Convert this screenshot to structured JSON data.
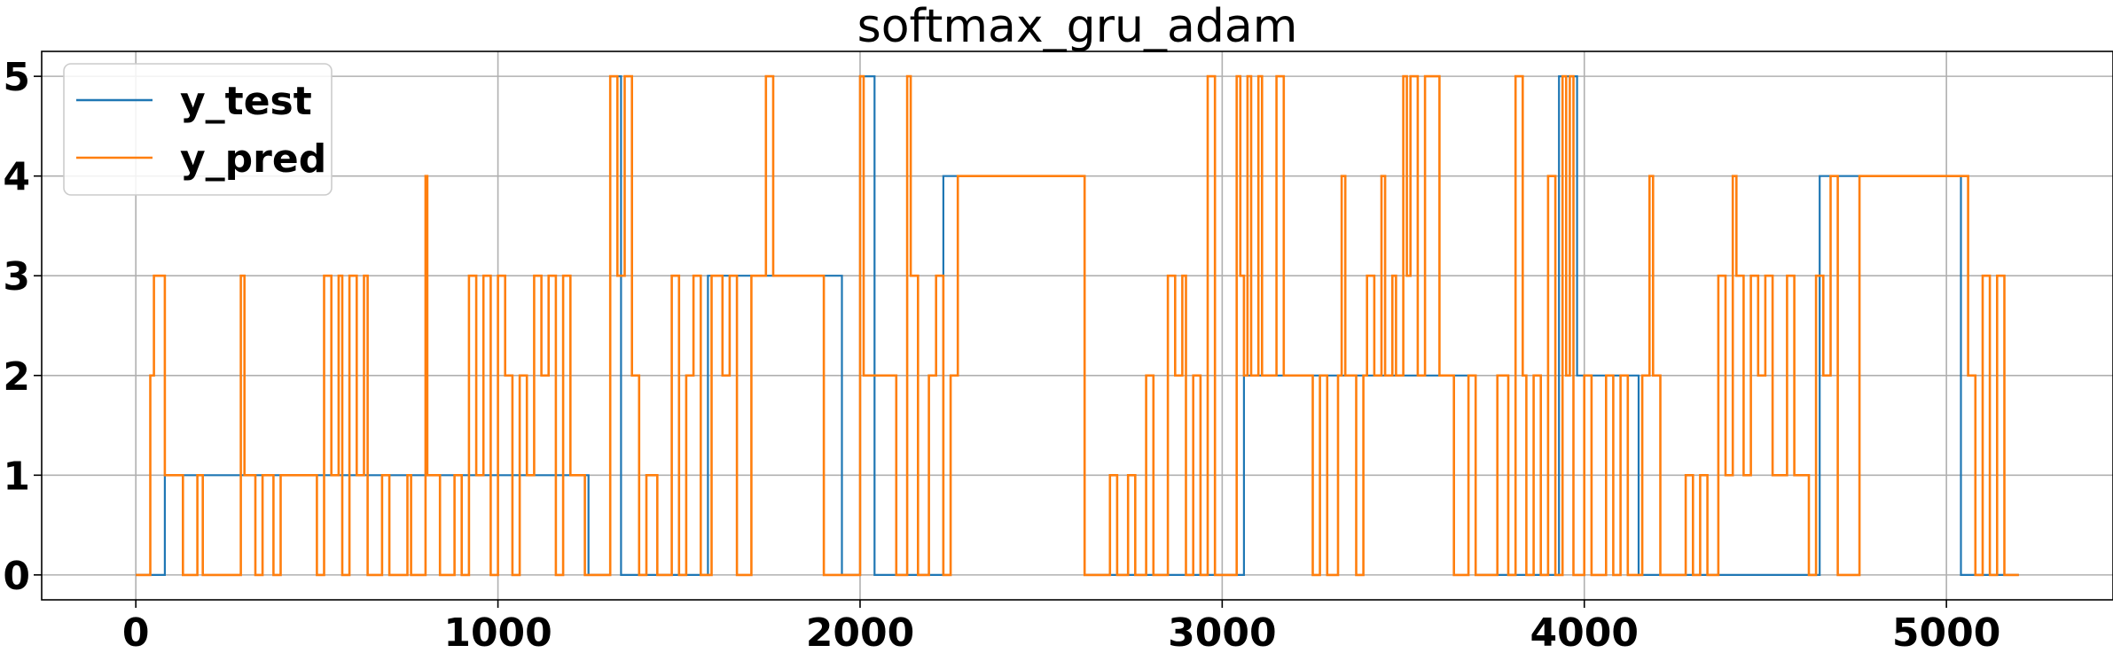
{
  "chart_data": {
    "type": "line",
    "title": "softmax_gru_adam",
    "xlabel": "",
    "ylabel": "",
    "xlim": [
      -260,
      5460
    ],
    "ylim": [
      -0.25,
      5.25
    ],
    "xticks": [
      0,
      1000,
      2000,
      3000,
      4000,
      5000
    ],
    "yticks": [
      0,
      1,
      2,
      3,
      4,
      5
    ],
    "grid": true,
    "legend_position": "top-left",
    "series": [
      {
        "name": "y_test",
        "color": "#1f77b4",
        "step_points": [
          [
            0,
            0
          ],
          [
            80,
            1
          ],
          [
            1250,
            0
          ],
          [
            1310,
            5
          ],
          [
            1340,
            0
          ],
          [
            1580,
            3
          ],
          [
            1950,
            0
          ],
          [
            2000,
            5
          ],
          [
            2040,
            0
          ],
          [
            2230,
            4
          ],
          [
            2620,
            0
          ],
          [
            3060,
            2
          ],
          [
            3700,
            0
          ],
          [
            3930,
            5
          ],
          [
            3980,
            2
          ],
          [
            4150,
            0
          ],
          [
            4650,
            4
          ],
          [
            5040,
            0
          ],
          [
            5200,
            0
          ]
        ]
      },
      {
        "name": "y_pred",
        "color": "#ff7f0e",
        "step_points": [
          [
            0,
            0
          ],
          [
            40,
            2
          ],
          [
            50,
            3
          ],
          [
            80,
            1
          ],
          [
            130,
            0
          ],
          [
            170,
            1
          ],
          [
            185,
            0
          ],
          [
            290,
            3
          ],
          [
            300,
            1
          ],
          [
            330,
            0
          ],
          [
            350,
            1
          ],
          [
            380,
            0
          ],
          [
            400,
            1
          ],
          [
            500,
            0
          ],
          [
            520,
            3
          ],
          [
            540,
            1
          ],
          [
            560,
            3
          ],
          [
            570,
            0
          ],
          [
            590,
            3
          ],
          [
            610,
            1
          ],
          [
            630,
            3
          ],
          [
            640,
            0
          ],
          [
            680,
            1
          ],
          [
            700,
            0
          ],
          [
            750,
            1
          ],
          [
            760,
            0
          ],
          [
            800,
            4
          ],
          [
            805,
            1
          ],
          [
            840,
            0
          ],
          [
            880,
            1
          ],
          [
            900,
            0
          ],
          [
            920,
            3
          ],
          [
            940,
            1
          ],
          [
            960,
            3
          ],
          [
            980,
            0
          ],
          [
            1000,
            3
          ],
          [
            1020,
            2
          ],
          [
            1040,
            0
          ],
          [
            1060,
            2
          ],
          [
            1080,
            1
          ],
          [
            1100,
            3
          ],
          [
            1120,
            2
          ],
          [
            1140,
            3
          ],
          [
            1160,
            0
          ],
          [
            1180,
            3
          ],
          [
            1200,
            1
          ],
          [
            1240,
            0
          ],
          [
            1310,
            5
          ],
          [
            1330,
            3
          ],
          [
            1350,
            5
          ],
          [
            1370,
            2
          ],
          [
            1390,
            0
          ],
          [
            1410,
            1
          ],
          [
            1440,
            0
          ],
          [
            1480,
            3
          ],
          [
            1500,
            0
          ],
          [
            1520,
            2
          ],
          [
            1540,
            3
          ],
          [
            1560,
            0
          ],
          [
            1590,
            3
          ],
          [
            1620,
            2
          ],
          [
            1640,
            3
          ],
          [
            1660,
            0
          ],
          [
            1700,
            3
          ],
          [
            1740,
            5
          ],
          [
            1760,
            3
          ],
          [
            1840,
            3
          ],
          [
            1900,
            0
          ],
          [
            2000,
            5
          ],
          [
            2010,
            2
          ],
          [
            2100,
            0
          ],
          [
            2130,
            5
          ],
          [
            2140,
            3
          ],
          [
            2160,
            0
          ],
          [
            2190,
            2
          ],
          [
            2210,
            3
          ],
          [
            2230,
            0
          ],
          [
            2250,
            2
          ],
          [
            2270,
            4
          ],
          [
            2620,
            0
          ],
          [
            2690,
            1
          ],
          [
            2710,
            0
          ],
          [
            2740,
            1
          ],
          [
            2760,
            0
          ],
          [
            2790,
            2
          ],
          [
            2810,
            0
          ],
          [
            2850,
            3
          ],
          [
            2870,
            2
          ],
          [
            2890,
            3
          ],
          [
            2900,
            0
          ],
          [
            2920,
            2
          ],
          [
            2940,
            0
          ],
          [
            2960,
            5
          ],
          [
            2980,
            0
          ],
          [
            3040,
            5
          ],
          [
            3050,
            3
          ],
          [
            3060,
            2
          ],
          [
            3070,
            5
          ],
          [
            3080,
            2
          ],
          [
            3100,
            5
          ],
          [
            3110,
            2
          ],
          [
            3150,
            5
          ],
          [
            3170,
            2
          ],
          [
            3250,
            0
          ],
          [
            3270,
            2
          ],
          [
            3290,
            0
          ],
          [
            3320,
            2
          ],
          [
            3330,
            4
          ],
          [
            3340,
            2
          ],
          [
            3370,
            0
          ],
          [
            3390,
            2
          ],
          [
            3400,
            3
          ],
          [
            3420,
            2
          ],
          [
            3440,
            4
          ],
          [
            3450,
            2
          ],
          [
            3470,
            3
          ],
          [
            3480,
            2
          ],
          [
            3500,
            5
          ],
          [
            3510,
            3
          ],
          [
            3520,
            5
          ],
          [
            3540,
            2
          ],
          [
            3560,
            5
          ],
          [
            3600,
            2
          ],
          [
            3640,
            0
          ],
          [
            3680,
            2
          ],
          [
            3700,
            0
          ],
          [
            3760,
            2
          ],
          [
            3790,
            0
          ],
          [
            3810,
            5
          ],
          [
            3830,
            2
          ],
          [
            3840,
            0
          ],
          [
            3860,
            2
          ],
          [
            3880,
            0
          ],
          [
            3900,
            4
          ],
          [
            3920,
            0
          ],
          [
            3940,
            5
          ],
          [
            3950,
            2
          ],
          [
            3960,
            5
          ],
          [
            3970,
            0
          ],
          [
            4000,
            2
          ],
          [
            4020,
            0
          ],
          [
            4060,
            2
          ],
          [
            4080,
            0
          ],
          [
            4100,
            2
          ],
          [
            4120,
            0
          ],
          [
            4150,
            0
          ],
          [
            4160,
            2
          ],
          [
            4180,
            4
          ],
          [
            4190,
            2
          ],
          [
            4210,
            0
          ],
          [
            4280,
            1
          ],
          [
            4300,
            0
          ],
          [
            4320,
            1
          ],
          [
            4340,
            0
          ],
          [
            4370,
            3
          ],
          [
            4390,
            1
          ],
          [
            4410,
            4
          ],
          [
            4420,
            3
          ],
          [
            4440,
            1
          ],
          [
            4460,
            3
          ],
          [
            4480,
            2
          ],
          [
            4500,
            3
          ],
          [
            4520,
            1
          ],
          [
            4560,
            3
          ],
          [
            4580,
            1
          ],
          [
            4620,
            0
          ],
          [
            4640,
            3
          ],
          [
            4660,
            2
          ],
          [
            4680,
            4
          ],
          [
            4700,
            0
          ],
          [
            4760,
            4
          ],
          [
            5060,
            2
          ],
          [
            5080,
            0
          ],
          [
            5100,
            3
          ],
          [
            5120,
            0
          ],
          [
            5140,
            3
          ],
          [
            5160,
            0
          ],
          [
            5200,
            0
          ]
        ]
      }
    ]
  }
}
